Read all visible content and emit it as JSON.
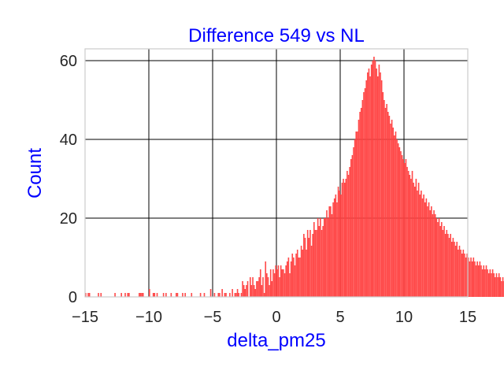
{
  "chart_data": {
    "type": "bar",
    "title": "Difference 549 vs NL",
    "xlabel": "delta_pm25",
    "ylabel": "Count",
    "xlim": [
      -15,
      15
    ],
    "ylim": [
      0,
      63
    ],
    "xticks": [
      -15,
      -10,
      -5,
      0,
      5,
      10,
      15
    ],
    "xtick_labels": [
      "−15",
      "−10",
      "−5",
      "0",
      "5",
      "10",
      "15"
    ],
    "yticks": [
      0,
      20,
      40,
      60
    ],
    "ytick_labels": [
      "0",
      "20",
      "40",
      "60"
    ],
    "grid": true,
    "bar_color": "#ff4040",
    "title_color": "#0000ff",
    "label_color": "#0000ff",
    "bins": {
      "start": -15.0,
      "width": 0.1,
      "counts": [
        1,
        0,
        1,
        1,
        0,
        0,
        0,
        0,
        0,
        0,
        1,
        0,
        1,
        0,
        0,
        0,
        0,
        0,
        0,
        0,
        0,
        0,
        0,
        1,
        0,
        0,
        0,
        0,
        1,
        0,
        0,
        1,
        0,
        1,
        1,
        0,
        0,
        0,
        0,
        0,
        0,
        0,
        1,
        1,
        1,
        1,
        0,
        0,
        0,
        0,
        2,
        0,
        0,
        1,
        1,
        0,
        1,
        0,
        0,
        0,
        0,
        1,
        0,
        1,
        0,
        0,
        0,
        1,
        0,
        0,
        0,
        1,
        1,
        0,
        0,
        0,
        1,
        0,
        1,
        0,
        0,
        0,
        0,
        1,
        0,
        0,
        0,
        0,
        0,
        0,
        1,
        0,
        0,
        1,
        0,
        0,
        0,
        0,
        2,
        0,
        0,
        1,
        0,
        0,
        1,
        1,
        0,
        2,
        0,
        1,
        1,
        0,
        0,
        1,
        0,
        2,
        0,
        1,
        1,
        2,
        1,
        0,
        1,
        4,
        3,
        2,
        3,
        4,
        0,
        5,
        3,
        5,
        3,
        2,
        4,
        4,
        5,
        7,
        3,
        5,
        1,
        9,
        6,
        5,
        3,
        7,
        4,
        7,
        6,
        8,
        7,
        8,
        5,
        8,
        7,
        7,
        6,
        8,
        9,
        10,
        6,
        9,
        11,
        10,
        8,
        11,
        12,
        10,
        10,
        13,
        12,
        16,
        15,
        12,
        17,
        15,
        17,
        13,
        16,
        19,
        17,
        17,
        20,
        18,
        20,
        17,
        18,
        20,
        20,
        22,
        20,
        23,
        23,
        21,
        24,
        25,
        26,
        24,
        28,
        27,
        26,
        29,
        30,
        29,
        30,
        32,
        31,
        33,
        35,
        36,
        38,
        40,
        42,
        42,
        45,
        47,
        48,
        50,
        52,
        53,
        55,
        57,
        58,
        56,
        59,
        60,
        61,
        60,
        58,
        56,
        59,
        57,
        55,
        52,
        50,
        48,
        49,
        47,
        46,
        44,
        45,
        43,
        41,
        42,
        40,
        39,
        38,
        37,
        36,
        35,
        34,
        35,
        33,
        32,
        31,
        30,
        32,
        29,
        28,
        30,
        27,
        29,
        26,
        27,
        25,
        26,
        24,
        25,
        23,
        24,
        22,
        23,
        21,
        22,
        21,
        20,
        19,
        20,
        18,
        19,
        17,
        18,
        16,
        17,
        16,
        15,
        16,
        14,
        15,
        14,
        13,
        14,
        12,
        13,
        12,
        11,
        12,
        11,
        10,
        11,
        10,
        9,
        10,
        9,
        10,
        9,
        8,
        9,
        8,
        9,
        8,
        7,
        8,
        7,
        8,
        7,
        6,
        7,
        6,
        7,
        6,
        5,
        6,
        5,
        6,
        5,
        4,
        5,
        4,
        5,
        4,
        5,
        4,
        3,
        4,
        3,
        4,
        3,
        4,
        3,
        2,
        3,
        2,
        3,
        2,
        3,
        2,
        1,
        2,
        1,
        2,
        1,
        2,
        1,
        1,
        2,
        1,
        1,
        1,
        0,
        1,
        1,
        0,
        1,
        0,
        1,
        1,
        0,
        1,
        0,
        1,
        0,
        1,
        0,
        1,
        0,
        0,
        1,
        0,
        1,
        0,
        0,
        1,
        0,
        0,
        0,
        1,
        0,
        0,
        1,
        0,
        0,
        0,
        1,
        0,
        0,
        1,
        0,
        0,
        0,
        0,
        1,
        0,
        0,
        0,
        1,
        0,
        0,
        0,
        0,
        0,
        1,
        0,
        0,
        0,
        1,
        0,
        0,
        0,
        0,
        0,
        1,
        0,
        0,
        0,
        0,
        0,
        0,
        1,
        0,
        0,
        0,
        0,
        0,
        0,
        1
      ]
    }
  }
}
